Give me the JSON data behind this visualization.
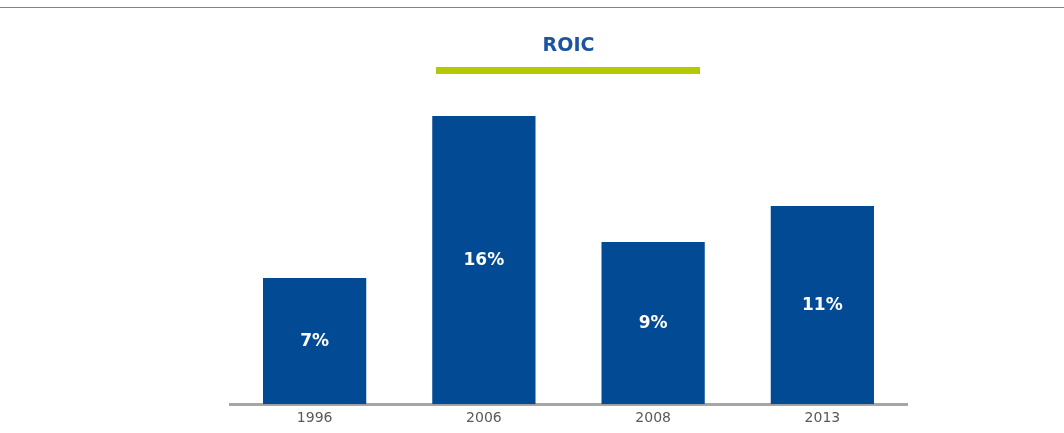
{
  "chart_data": {
    "type": "bar",
    "title": "ROIC",
    "categories": [
      "1996",
      "2006",
      "2008",
      "2013"
    ],
    "values": [
      7,
      16,
      9,
      11
    ],
    "value_labels": [
      "7%",
      "16%",
      "9%",
      "11%"
    ],
    "color": "#024a94",
    "tick_labels": "x",
    "grid": false,
    "legend": false
  }
}
